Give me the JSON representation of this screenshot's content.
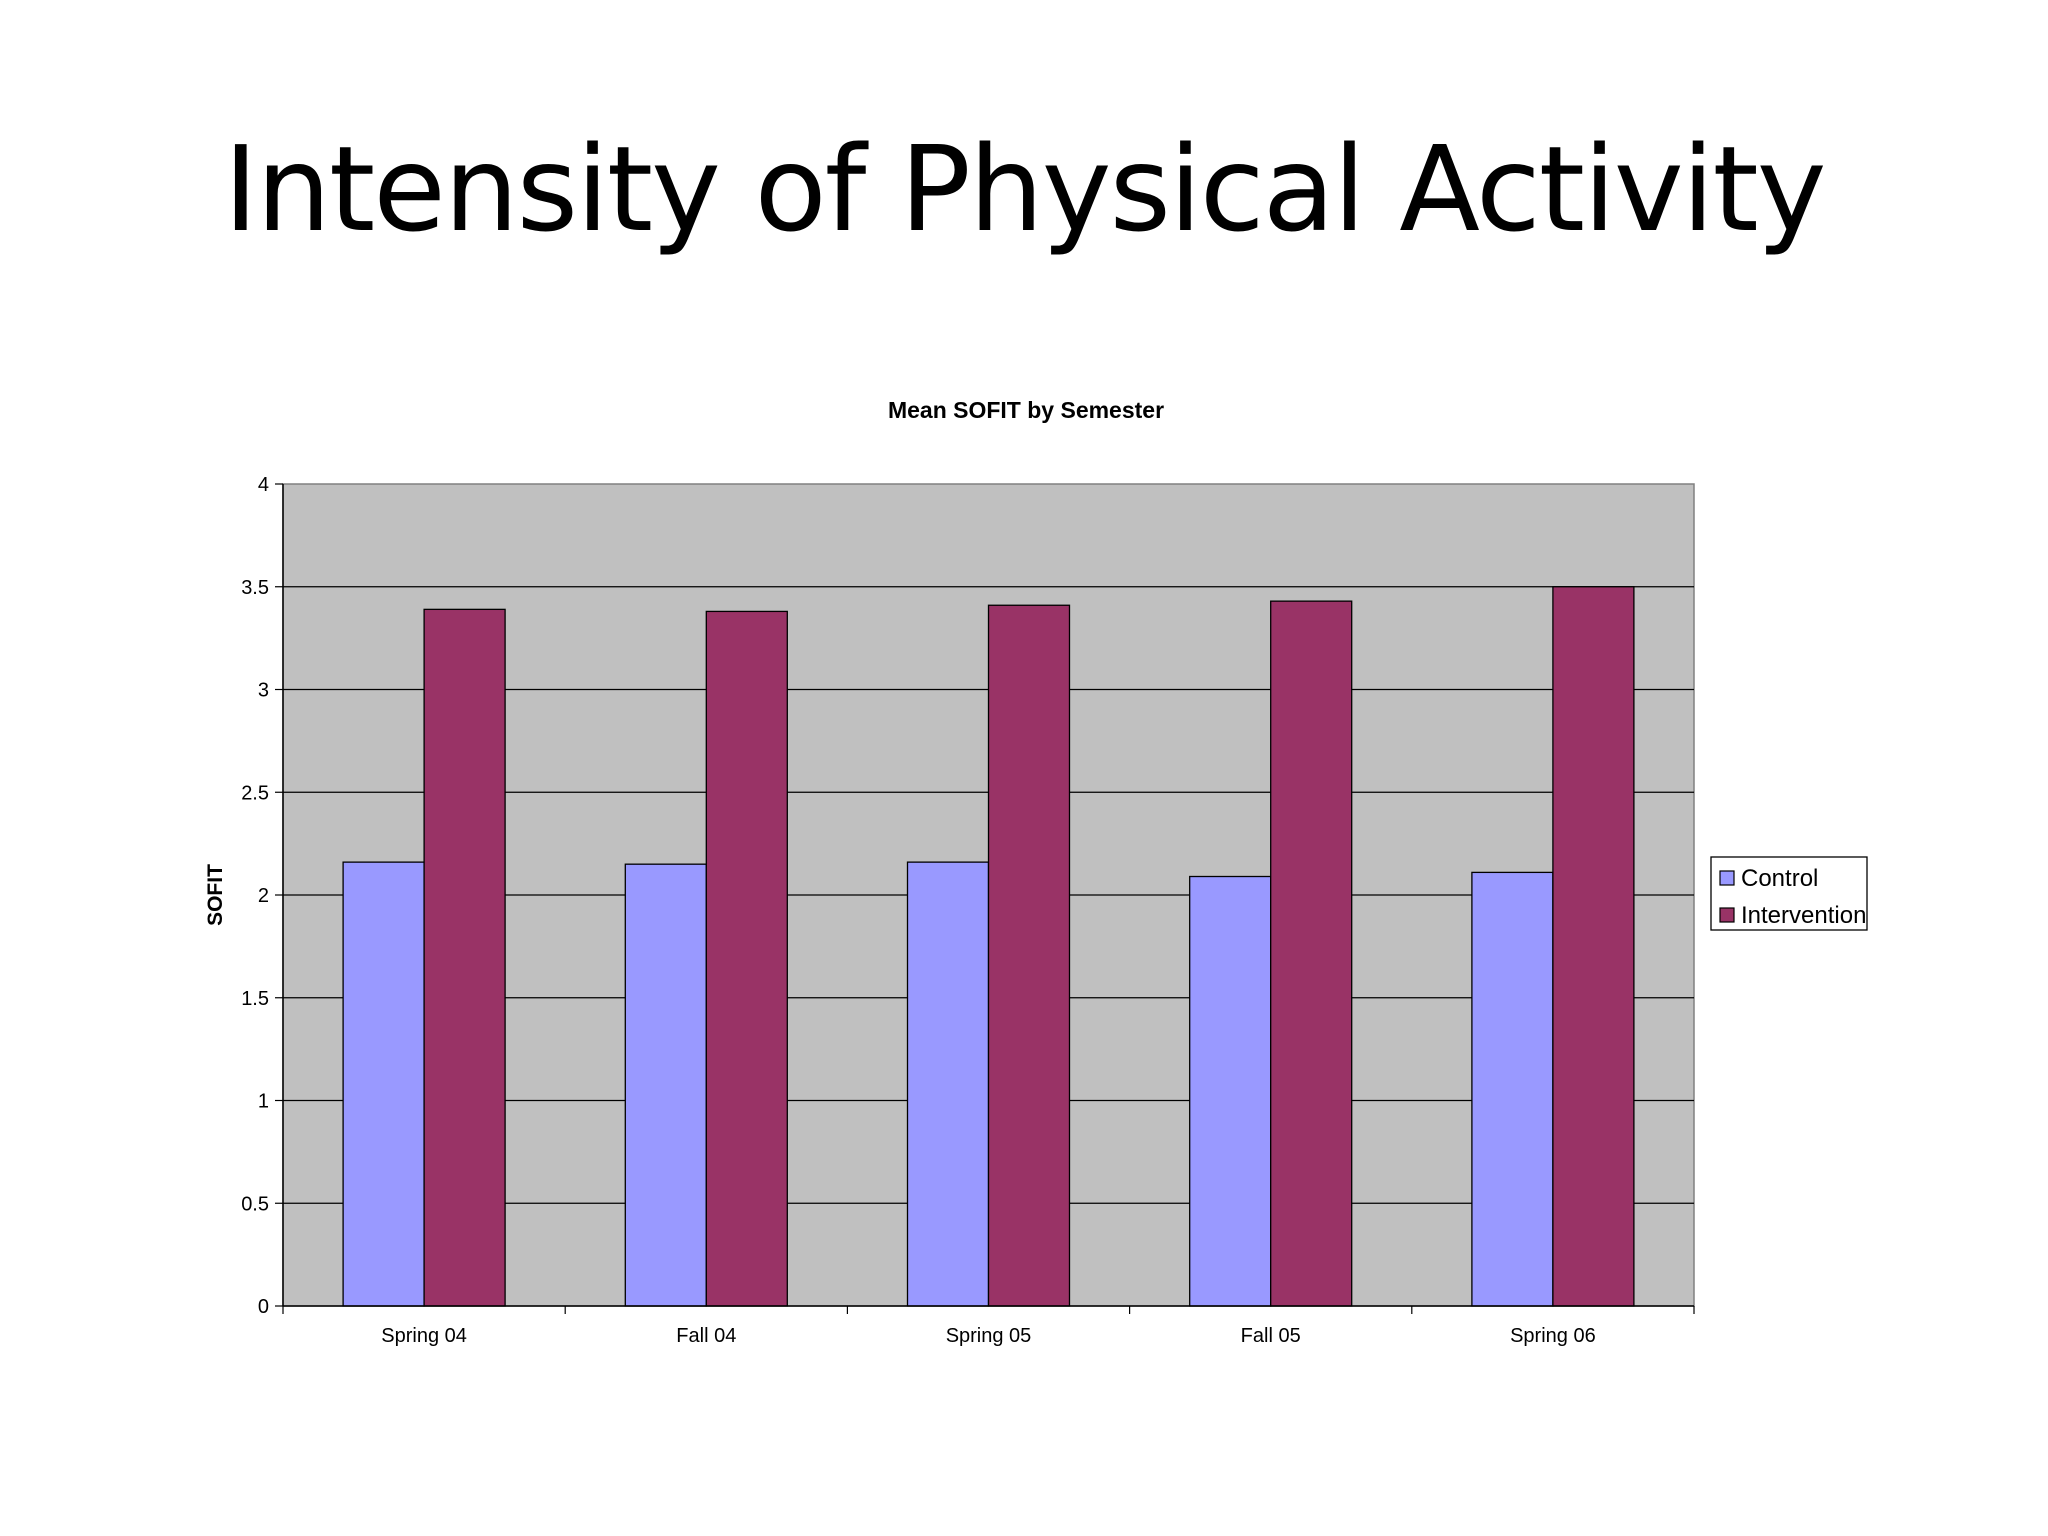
{
  "slide": {
    "title": "Intensity of Physical Activity"
  },
  "chart_data": {
    "type": "bar",
    "title": "Mean SOFIT by Semester",
    "xlabel": "",
    "ylabel": "SOFIT",
    "categories": [
      "Spring 04",
      "Fall 04",
      "Spring 05",
      "Fall 05",
      "Spring 06"
    ],
    "series": [
      {
        "name": "Control",
        "values": [
          2.16,
          2.15,
          2.16,
          2.09,
          2.11
        ],
        "color": "#9999ff"
      },
      {
        "name": "Intervention",
        "values": [
          3.39,
          3.38,
          3.41,
          3.43,
          3.5
        ],
        "color": "#993366"
      }
    ],
    "ylim": [
      0,
      4
    ],
    "yticks": [
      "0",
      "0.5",
      "1",
      "1.5",
      "2",
      "2.5",
      "3",
      "3.5",
      "4"
    ],
    "grid": true,
    "legend_position": "right",
    "plot_background": "#c0c0c0"
  }
}
